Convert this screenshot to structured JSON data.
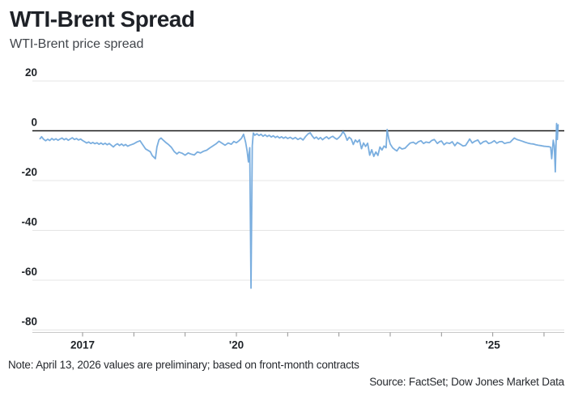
{
  "header": {
    "title": "WTI-Brent Spread",
    "subtitle": "WTI-Brent price spread"
  },
  "footer": {
    "note": "Note: April 13, 2026 values are preliminary; based on front-month contracts",
    "source": "Source: FactSet; Dow Jones Market Data"
  },
  "colors": {
    "line": "#7AAEDF",
    "zero_line": "#191919",
    "grid": "#E4E4E4",
    "axis_line": "#C9C9C9",
    "tick": "#909090",
    "label": "#1F2328"
  },
  "chart_data": {
    "type": "line",
    "title": "WTI-Brent Spread",
    "subtitle": "WTI-Brent price spread",
    "xlabel": "",
    "ylabel": "",
    "grid": true,
    "legend": "none",
    "ylim": [
      -80,
      20
    ],
    "x_range": [
      2016.17,
      2026.29
    ],
    "y_ticks": [
      20,
      0,
      -20,
      -40,
      -60,
      -80
    ],
    "x_tick_years": [
      2017,
      2018,
      2019,
      2020,
      2021,
      2022,
      2023,
      2024,
      2025,
      2026
    ],
    "x_tick_labels": {
      "2017": "2017",
      "2020": "'20",
      "2025": "'25"
    },
    "series": [
      {
        "name": "WTI-Brent price spread",
        "color": "#7AAEDF",
        "points": [
          [
            2016.17,
            -3.2
          ],
          [
            2016.2,
            -2.4
          ],
          [
            2016.24,
            -3.4
          ],
          [
            2016.28,
            -4.0
          ],
          [
            2016.32,
            -3.4
          ],
          [
            2016.36,
            -3.9
          ],
          [
            2016.4,
            -3.1
          ],
          [
            2016.44,
            -3.7
          ],
          [
            2016.48,
            -3.2
          ],
          [
            2016.52,
            -3.8
          ],
          [
            2016.56,
            -3.3
          ],
          [
            2016.6,
            -2.9
          ],
          [
            2016.64,
            -3.6
          ],
          [
            2016.68,
            -3.1
          ],
          [
            2016.72,
            -3.8
          ],
          [
            2016.76,
            -3.3
          ],
          [
            2016.8,
            -2.8
          ],
          [
            2016.84,
            -3.5
          ],
          [
            2016.88,
            -3.1
          ],
          [
            2016.92,
            -3.7
          ],
          [
            2016.96,
            -3.3
          ],
          [
            2017.0,
            -3.9
          ],
          [
            2017.04,
            -4.4
          ],
          [
            2017.08,
            -4.9
          ],
          [
            2017.12,
            -4.5
          ],
          [
            2017.16,
            -5.1
          ],
          [
            2017.2,
            -4.7
          ],
          [
            2017.24,
            -5.2
          ],
          [
            2017.28,
            -4.8
          ],
          [
            2017.32,
            -5.4
          ],
          [
            2017.36,
            -4.9
          ],
          [
            2017.4,
            -5.5
          ],
          [
            2017.44,
            -5.0
          ],
          [
            2017.48,
            -5.6
          ],
          [
            2017.52,
            -5.1
          ],
          [
            2017.56,
            -5.8
          ],
          [
            2017.6,
            -6.5
          ],
          [
            2017.64,
            -5.7
          ],
          [
            2017.68,
            -5.2
          ],
          [
            2017.72,
            -5.9
          ],
          [
            2017.76,
            -5.3
          ],
          [
            2017.8,
            -6.0
          ],
          [
            2017.84,
            -5.5
          ],
          [
            2017.88,
            -6.2
          ],
          [
            2017.92,
            -5.8
          ],
          [
            2017.96,
            -5.5
          ],
          [
            2018.0,
            -5.2
          ],
          [
            2018.06,
            -4.5
          ],
          [
            2018.12,
            -4.0
          ],
          [
            2018.18,
            -5.8
          ],
          [
            2018.23,
            -7.3
          ],
          [
            2018.28,
            -7.9
          ],
          [
            2018.32,
            -8.4
          ],
          [
            2018.36,
            -10.0
          ],
          [
            2018.42,
            -11.2
          ],
          [
            2018.45,
            -6.5
          ],
          [
            2018.49,
            -3.6
          ],
          [
            2018.53,
            -2.9
          ],
          [
            2018.58,
            -3.9
          ],
          [
            2018.63,
            -4.8
          ],
          [
            2018.68,
            -5.6
          ],
          [
            2018.73,
            -6.6
          ],
          [
            2018.79,
            -8.4
          ],
          [
            2018.84,
            -9.3
          ],
          [
            2018.88,
            -8.6
          ],
          [
            2018.94,
            -9.0
          ],
          [
            2019.0,
            -9.8
          ],
          [
            2019.06,
            -8.9
          ],
          [
            2019.12,
            -9.4
          ],
          [
            2019.18,
            -9.7
          ],
          [
            2019.24,
            -8.5
          ],
          [
            2019.3,
            -8.9
          ],
          [
            2019.36,
            -8.2
          ],
          [
            2019.42,
            -7.8
          ],
          [
            2019.48,
            -6.9
          ],
          [
            2019.54,
            -6.1
          ],
          [
            2019.6,
            -5.3
          ],
          [
            2019.66,
            -4.2
          ],
          [
            2019.72,
            -5.0
          ],
          [
            2019.78,
            -5.8
          ],
          [
            2019.84,
            -4.9
          ],
          [
            2019.9,
            -5.4
          ],
          [
            2019.95,
            -4.3
          ],
          [
            2020.0,
            -4.8
          ],
          [
            2020.05,
            -4.0
          ],
          [
            2020.1,
            -3.0
          ],
          [
            2020.14,
            -1.4
          ],
          [
            2020.18,
            -4.6
          ],
          [
            2020.21,
            -8.2
          ],
          [
            2020.235,
            -12.5
          ],
          [
            2020.26,
            -6.8
          ],
          [
            2020.285,
            -63.2
          ],
          [
            2020.31,
            -6.0
          ],
          [
            2020.33,
            -0.9
          ],
          [
            2020.36,
            -1.8
          ],
          [
            2020.4,
            -1.2
          ],
          [
            2020.44,
            -1.9
          ],
          [
            2020.48,
            -1.4
          ],
          [
            2020.52,
            -2.2
          ],
          [
            2020.56,
            -1.6
          ],
          [
            2020.6,
            -2.3
          ],
          [
            2020.64,
            -1.8
          ],
          [
            2020.68,
            -2.5
          ],
          [
            2020.72,
            -2.0
          ],
          [
            2020.76,
            -2.7
          ],
          [
            2020.8,
            -2.2
          ],
          [
            2020.84,
            -2.9
          ],
          [
            2020.88,
            -2.4
          ],
          [
            2020.92,
            -3.0
          ],
          [
            2020.96,
            -2.5
          ],
          [
            2021.0,
            -3.1
          ],
          [
            2021.05,
            -2.6
          ],
          [
            2021.1,
            -3.3
          ],
          [
            2021.15,
            -2.7
          ],
          [
            2021.2,
            -3.5
          ],
          [
            2021.25,
            -2.9
          ],
          [
            2021.3,
            -3.7
          ],
          [
            2021.35,
            -2.3
          ],
          [
            2021.4,
            -1.2
          ],
          [
            2021.44,
            -0.8
          ],
          [
            2021.48,
            -2.1
          ],
          [
            2021.52,
            -3.1
          ],
          [
            2021.56,
            -2.5
          ],
          [
            2021.6,
            -3.4
          ],
          [
            2021.64,
            -2.7
          ],
          [
            2021.68,
            -3.6
          ],
          [
            2021.72,
            -2.9
          ],
          [
            2021.76,
            -2.4
          ],
          [
            2021.8,
            -3.2
          ],
          [
            2021.84,
            -2.6
          ],
          [
            2021.88,
            -2.2
          ],
          [
            2021.92,
            -2.9
          ],
          [
            2021.96,
            -3.4
          ],
          [
            2022.0,
            -2.7
          ],
          [
            2022.04,
            -1.8
          ],
          [
            2022.08,
            -0.3
          ],
          [
            2022.12,
            -1.6
          ],
          [
            2022.16,
            -3.8
          ],
          [
            2022.2,
            -2.6
          ],
          [
            2022.24,
            -3.3
          ],
          [
            2022.28,
            -5.5
          ],
          [
            2022.32,
            -3.7
          ],
          [
            2022.36,
            -4.6
          ],
          [
            2022.4,
            -3.6
          ],
          [
            2022.44,
            -7.2
          ],
          [
            2022.48,
            -4.9
          ],
          [
            2022.52,
            -6.3
          ],
          [
            2022.56,
            -5.0
          ],
          [
            2022.6,
            -9.8
          ],
          [
            2022.64,
            -7.6
          ],
          [
            2022.68,
            -10.3
          ],
          [
            2022.72,
            -8.5
          ],
          [
            2022.76,
            -9.9
          ],
          [
            2022.8,
            -6.5
          ],
          [
            2022.84,
            -7.7
          ],
          [
            2022.88,
            -6.1
          ],
          [
            2022.92,
            -6.8
          ],
          [
            2022.94,
            0.5
          ],
          [
            2022.97,
            -3.0
          ],
          [
            2023.0,
            -5.3
          ],
          [
            2023.05,
            -6.9
          ],
          [
            2023.1,
            -7.7
          ],
          [
            2023.13,
            -8.1
          ],
          [
            2023.18,
            -6.6
          ],
          [
            2023.23,
            -7.3
          ],
          [
            2023.29,
            -7.0
          ],
          [
            2023.34,
            -5.9
          ],
          [
            2023.39,
            -4.9
          ],
          [
            2023.45,
            -4.6
          ],
          [
            2023.5,
            -5.3
          ],
          [
            2023.55,
            -4.4
          ],
          [
            2023.6,
            -4.0
          ],
          [
            2023.65,
            -5.1
          ],
          [
            2023.7,
            -4.5
          ],
          [
            2023.76,
            -4.8
          ],
          [
            2023.81,
            -3.9
          ],
          [
            2023.86,
            -3.5
          ],
          [
            2023.92,
            -5.1
          ],
          [
            2023.96,
            -4.4
          ],
          [
            2024.0,
            -4.1
          ],
          [
            2024.05,
            -5.6
          ],
          [
            2024.1,
            -4.8
          ],
          [
            2024.16,
            -5.1
          ],
          [
            2024.21,
            -4.4
          ],
          [
            2024.26,
            -6.0
          ],
          [
            2024.31,
            -4.7
          ],
          [
            2024.36,
            -5.3
          ],
          [
            2024.42,
            -6.1
          ],
          [
            2024.47,
            -5.9
          ],
          [
            2024.52,
            -4.3
          ],
          [
            2024.55,
            -3.3
          ],
          [
            2024.6,
            -4.9
          ],
          [
            2024.65,
            -4.2
          ],
          [
            2024.71,
            -3.7
          ],
          [
            2024.76,
            -5.3
          ],
          [
            2024.82,
            -4.4
          ],
          [
            2024.87,
            -4.1
          ],
          [
            2024.92,
            -5.1
          ],
          [
            2024.97,
            -4.8
          ],
          [
            2025.03,
            -4.0
          ],
          [
            2025.08,
            -5.0
          ],
          [
            2025.13,
            -4.4
          ],
          [
            2025.18,
            -4.3
          ],
          [
            2025.23,
            -5.1
          ],
          [
            2025.28,
            -4.8
          ],
          [
            2025.34,
            -4.6
          ],
          [
            2025.42,
            -2.9
          ],
          [
            2025.47,
            -3.5
          ],
          [
            2025.52,
            -3.8
          ],
          [
            2025.58,
            -4.2
          ],
          [
            2025.63,
            -4.6
          ],
          [
            2025.68,
            -4.9
          ],
          [
            2025.74,
            -5.2
          ],
          [
            2025.79,
            -5.3
          ],
          [
            2025.84,
            -5.6
          ],
          [
            2025.89,
            -5.8
          ],
          [
            2025.95,
            -6.0
          ],
          [
            2026.0,
            -6.2
          ],
          [
            2026.05,
            -6.3
          ],
          [
            2026.1,
            -6.4
          ],
          [
            2026.13,
            -6.6
          ],
          [
            2026.15,
            -11.2
          ],
          [
            2026.18,
            -3.8
          ],
          [
            2026.2,
            -6.0
          ],
          [
            2026.22,
            -16.5
          ],
          [
            2026.245,
            2.9
          ],
          [
            2026.26,
            -3.5
          ],
          [
            2026.275,
            2.4
          ]
        ]
      }
    ]
  }
}
